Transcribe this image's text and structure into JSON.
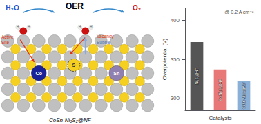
{
  "chart_data": {
    "type": "bar",
    "categories": [
      "Ni₃S₂@NF",
      "Co-Ni₃S₂@NF",
      "CoSn-Ni₃S₂@NF"
    ],
    "values": [
      372,
      337,
      322
    ],
    "colors": [
      "#555555",
      "#e87878",
      "#8ab0d8"
    ],
    "ylim": [
      285,
      415
    ],
    "yticks": [
      300,
      350,
      400
    ],
    "ylabel": "Overpotential (V)",
    "xlabel": "Catalysts",
    "tick_labels": "y",
    "grid": false,
    "annotations": [
      "@ 0.2 A cm⁻²",
      "OER",
      "H₂O",
      "O₂",
      "Co",
      "S",
      "Sn",
      "H",
      "H",
      "H",
      "H",
      "Active\nSite",
      "Vacancy",
      "Bubble",
      "CoSn-Ni₃S₂@NF"
    ]
  }
}
